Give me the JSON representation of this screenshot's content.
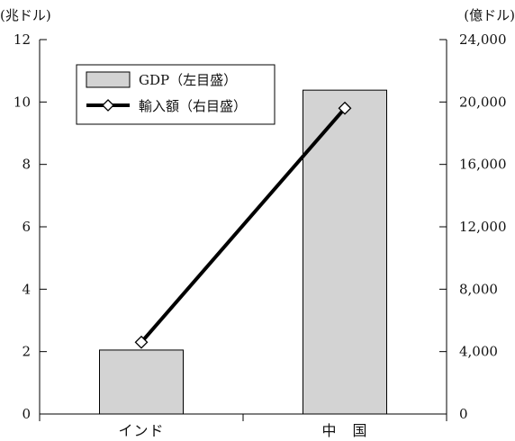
{
  "chart_data": {
    "type": "bar+line",
    "categories": [
      "インド",
      "中　国"
    ],
    "left_axis": {
      "unit_label": "(兆ドル)",
      "ylim": [
        0,
        12
      ],
      "ticks": [
        "0",
        "2",
        "4",
        "6",
        "8",
        "10",
        "12"
      ]
    },
    "right_axis": {
      "unit_label": "(億ドル)",
      "ylim": [
        0,
        24000
      ],
      "ticks": [
        "0",
        "4,000",
        "8,000",
        "12,000",
        "16,000",
        "20,000",
        "24,000"
      ]
    },
    "series": [
      {
        "name": "GDP（左目盛）",
        "kind": "bar",
        "axis": "left",
        "values": [
          2.05,
          10.38
        ],
        "color": "#d3d3d3"
      },
      {
        "name": "輸入額（右目盛）",
        "kind": "line",
        "axis": "right",
        "marker": "diamond-open",
        "values": [
          4600,
          19600
        ],
        "color": "#000000"
      }
    ],
    "legend_position": "top-left",
    "grid": false
  }
}
